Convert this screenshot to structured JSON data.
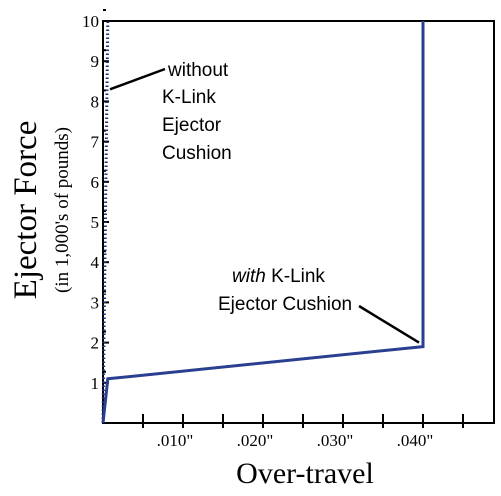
{
  "chart_data": {
    "type": "line",
    "xlabel": "Over-travel",
    "ylabel": "Ejector Force",
    "ylabel_sub": "(in 1,000's of pounds)",
    "xlim": [
      0,
      0.048
    ],
    "ylim": [
      0,
      10
    ],
    "x_ticks": [
      0.005,
      0.01,
      0.015,
      0.02,
      0.025,
      0.03,
      0.035,
      0.04,
      0.045
    ],
    "x_tick_labels": [
      {
        "value": 0.01,
        "label": ".010\""
      },
      {
        "value": 0.02,
        "label": ".020\""
      },
      {
        "value": 0.03,
        "label": ".030\""
      },
      {
        "value": 0.04,
        "label": ".040\""
      }
    ],
    "y_ticks": [
      1,
      2,
      3,
      4,
      5,
      6,
      7,
      8,
      9,
      10
    ],
    "y_tick_labels": [
      "1",
      "2",
      "3",
      "4",
      "5",
      "6",
      "7",
      "8",
      "9",
      "10"
    ],
    "series": [
      {
        "color": "#1f2f7a",
        "style": "dotted",
        "points": [
          [
            0,
            0
          ],
          [
            0.0003,
            5
          ],
          [
            0.0006,
            10
          ]
        ]
      },
      {
        "color": "#2a3f8f",
        "style": "solid",
        "points": [
          [
            0,
            0
          ],
          [
            0.0006,
            1.1
          ],
          [
            0.04,
            1.9
          ],
          [
            0.04,
            10
          ]
        ]
      }
    ],
    "annotations": [
      {
        "name": "without-annotation",
        "lines": [
          "without",
          "K-Link",
          "Ejector",
          "Cushion"
        ],
        "points_to": [
          0.0005,
          8.3
        ]
      },
      {
        "name": "with-annotation",
        "emphasis": "with",
        "lines": [
          " K-Link",
          "Ejector Cushion"
        ],
        "points_to": [
          0.0395,
          1.9
        ]
      }
    ],
    "grid": false
  }
}
